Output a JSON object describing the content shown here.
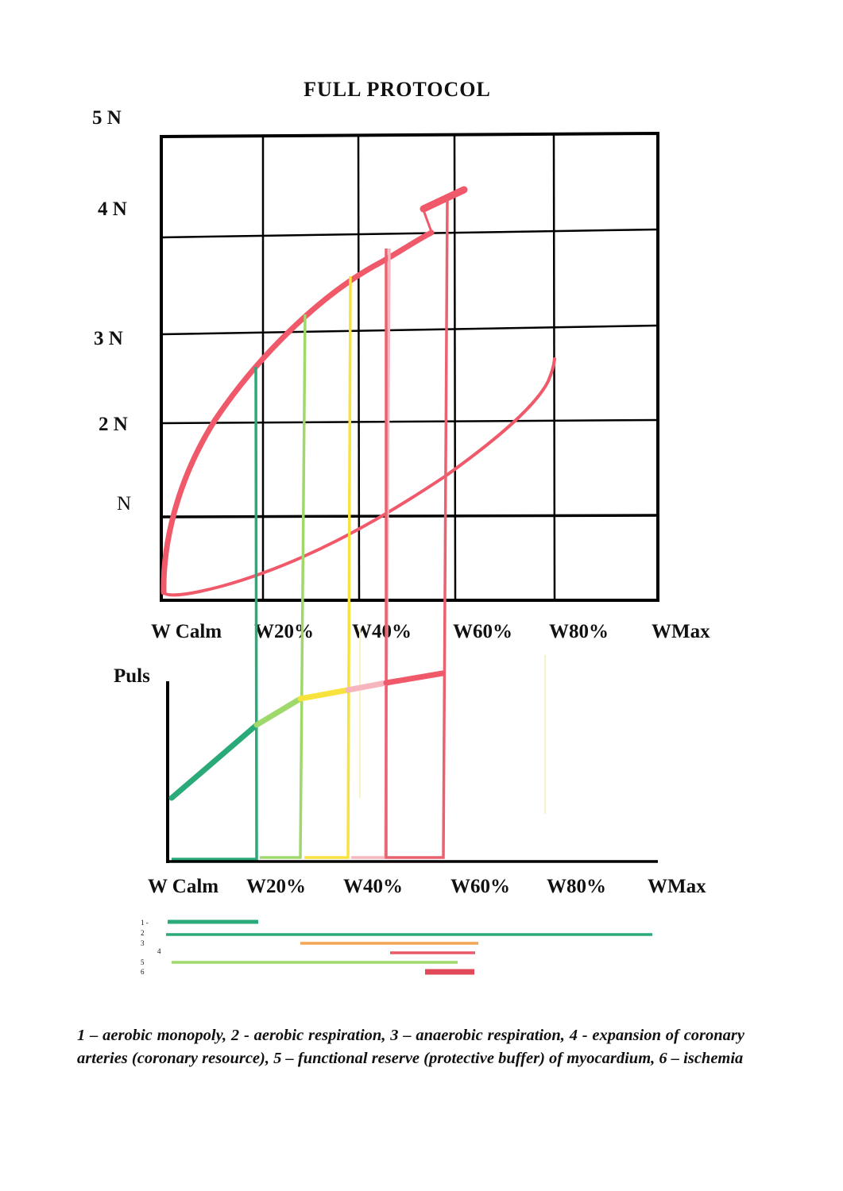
{
  "title": "FULL    PROTOCOL",
  "top_chart": {
    "y_labels": [
      "5 N",
      "4 N",
      "3  N",
      "2 N",
      "N"
    ],
    "x_labels": [
      "W Calm",
      "W20%",
      "W40%",
      "W60%",
      "W80%",
      "WMax"
    ],
    "colors": {
      "grid": "#000000",
      "curve": "#f0596a"
    }
  },
  "bottom_chart": {
    "y_label": "Puls",
    "x_labels": [
      "W Calm",
      "W20%",
      "W40%",
      "W60%",
      "W80%",
      "WMax"
    ],
    "colors": {
      "zone1": "#2aaa78",
      "zone2": "#9fd86b",
      "zone3": "#f8e23c",
      "zone4": "#f7b5bd",
      "zone5": "#f0596a"
    }
  },
  "legend": {
    "numbers": [
      "1  -",
      "2",
      "3",
      "4",
      "5",
      "6"
    ],
    "colors": [
      "#2aaa78",
      "#2aaa78",
      "#f2a552",
      "#e85a6a",
      "#9fd86b",
      "#e04a58"
    ]
  },
  "caption": "1 – aerobic monopoly, 2 - aerobic respiration, 3 – anaerobic respiration, 4 - expansion of coronary arteries (coronary resource), 5 – functional reserve (protective buffer) of myocardium, 6 – ischemia"
}
